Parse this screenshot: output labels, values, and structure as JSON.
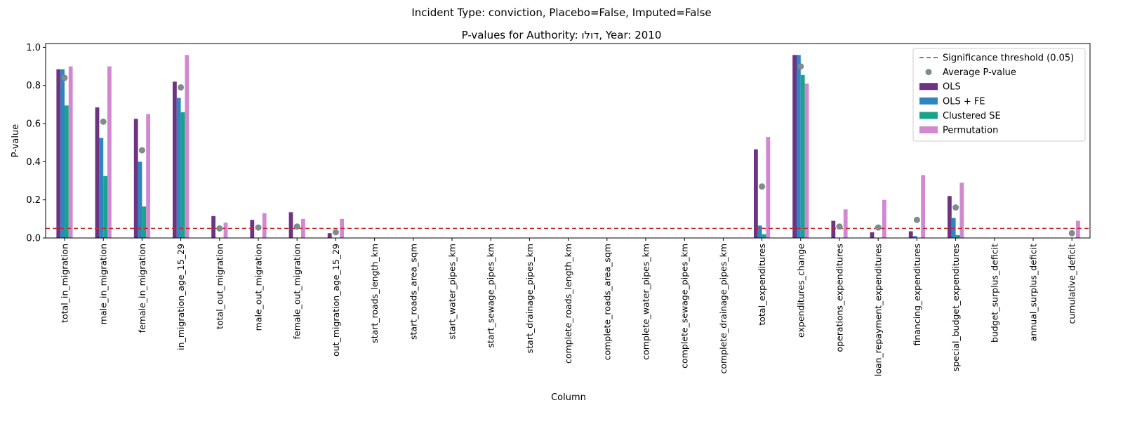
{
  "suptitle": "Incident Type: conviction, Placebo=False, Imputed=False",
  "chart_data": {
    "type": "bar",
    "title": "P-values for Authority: דולו, Year: 2010",
    "xlabel": "Column",
    "ylabel": "P-value",
    "ylim": [
      0,
      1.02
    ],
    "yticks": [
      "0.0",
      "0.2",
      "0.4",
      "0.6",
      "0.8",
      "1.0"
    ],
    "grid": false,
    "legend_position": "top-right",
    "threshold": {
      "name": "Significance threshold (0.05)",
      "value": 0.05,
      "color": "#c62828"
    },
    "average": {
      "name": "Average P-value",
      "color": "#7f8c8d"
    },
    "categories": [
      "total_in_migration",
      "male_in_migration",
      "female_in_migration",
      "in_migration_age_15_29",
      "total_out_migration",
      "male_out_migration",
      "female_out_migration",
      "out_migration_age_15_29",
      "start_roads_length_km",
      "start_roads_area_sqm",
      "start_water_pipes_km",
      "start_sewage_pipes_km",
      "start_drainage_pipes_km",
      "complete_roads_length_km",
      "complete_roads_area_sqm",
      "complete_water_pipes_km",
      "complete_sewage_pipes_km",
      "complete_drainage_pipes_km",
      "total_expenditures",
      "expenditures_change",
      "operations_expenditures",
      "loan_repayment_expenditures",
      "financing_expenditures",
      "special_budget_expenditures",
      "budget_surplus_deficit",
      "annual_surplus_deficit",
      "cumulative_deficit"
    ],
    "series": [
      {
        "name": "OLS",
        "color": "#6c3483",
        "values": [
          0.885,
          0.685,
          0.625,
          0.82,
          0.115,
          0.095,
          0.135,
          0.025,
          null,
          null,
          null,
          null,
          null,
          null,
          null,
          null,
          null,
          null,
          0.465,
          0.96,
          0.09,
          0.03,
          0.035,
          0.22,
          null,
          null,
          0.0
        ]
      },
      {
        "name": "OLS + FE",
        "color": "#2e86c1",
        "values": [
          0.885,
          0.525,
          0.4,
          0.735,
          0.0,
          0.0,
          0.0,
          0.0,
          null,
          null,
          null,
          null,
          null,
          null,
          null,
          null,
          null,
          null,
          0.065,
          0.96,
          0.0,
          0.0,
          0.01,
          0.105,
          null,
          null,
          0.0
        ]
      },
      {
        "name": "Clustered SE",
        "color": "#17a589",
        "values": [
          0.695,
          0.325,
          0.165,
          0.66,
          0.0,
          0.0,
          0.0,
          0.0,
          null,
          null,
          null,
          null,
          null,
          null,
          null,
          null,
          null,
          null,
          0.02,
          0.855,
          0.0,
          0.0,
          0.0,
          0.015,
          null,
          null,
          0.0
        ]
      },
      {
        "name": "Permutation",
        "color": "#d288d0",
        "values": [
          0.9,
          0.9,
          0.65,
          0.96,
          0.08,
          0.13,
          0.1,
          0.1,
          null,
          null,
          null,
          null,
          null,
          null,
          null,
          null,
          null,
          null,
          0.53,
          0.81,
          0.15,
          0.2,
          0.33,
          0.29,
          null,
          null,
          0.09
        ]
      }
    ],
    "average_values": [
      0.84,
      0.61,
      0.46,
      0.79,
      0.05,
      0.055,
      0.06,
      0.03,
      null,
      null,
      null,
      null,
      null,
      null,
      null,
      null,
      null,
      null,
      0.27,
      0.9,
      0.06,
      0.055,
      0.095,
      0.16,
      null,
      null,
      0.025
    ]
  }
}
